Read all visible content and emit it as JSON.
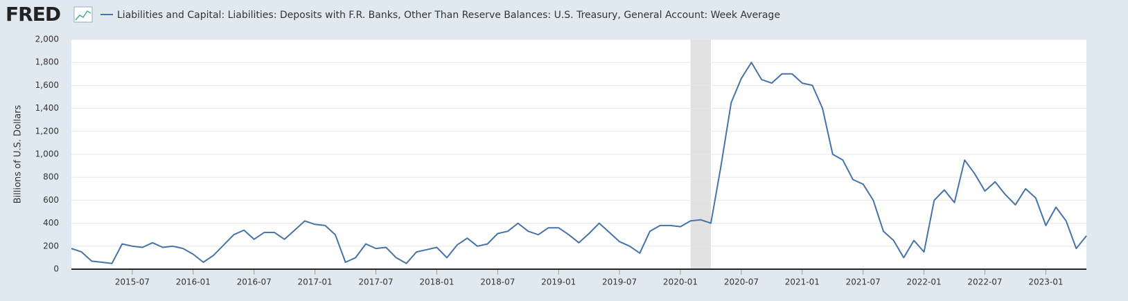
{
  "logo": "FRED",
  "chart_data": {
    "type": "line",
    "y_label": "Billions of U.S. Dollars",
    "x": [
      "2015-01",
      "2015-02",
      "2015-03",
      "2015-04",
      "2015-05",
      "2015-06",
      "2015-07",
      "2015-08",
      "2015-09",
      "2015-10",
      "2015-11",
      "2015-12",
      "2016-01",
      "2016-02",
      "2016-03",
      "2016-04",
      "2016-05",
      "2016-06",
      "2016-07",
      "2016-08",
      "2016-09",
      "2016-10",
      "2016-11",
      "2016-12",
      "2017-01",
      "2017-02",
      "2017-03",
      "2017-04",
      "2017-05",
      "2017-06",
      "2017-07",
      "2017-08",
      "2017-09",
      "2017-10",
      "2017-11",
      "2017-12",
      "2018-01",
      "2018-02",
      "2018-03",
      "2018-04",
      "2018-05",
      "2018-06",
      "2018-07",
      "2018-08",
      "2018-09",
      "2018-10",
      "2018-11",
      "2018-12",
      "2019-01",
      "2019-02",
      "2019-03",
      "2019-04",
      "2019-05",
      "2019-06",
      "2019-07",
      "2019-08",
      "2019-09",
      "2019-10",
      "2019-11",
      "2019-12",
      "2020-01",
      "2020-02",
      "2020-03",
      "2020-04",
      "2020-05",
      "2020-06",
      "2020-07",
      "2020-08",
      "2020-09",
      "2020-10",
      "2020-11",
      "2020-12",
      "2021-01",
      "2021-02",
      "2021-03",
      "2021-04",
      "2021-05",
      "2021-06",
      "2021-07",
      "2021-08",
      "2021-09",
      "2021-10",
      "2021-11",
      "2021-12",
      "2022-01",
      "2022-02",
      "2022-03",
      "2022-04",
      "2022-05",
      "2022-06",
      "2022-07",
      "2022-08",
      "2022-09",
      "2022-10",
      "2022-11",
      "2022-12",
      "2023-01",
      "2023-02",
      "2023-03",
      "2023-04",
      "2023-05"
    ],
    "series": [
      {
        "name": "Liabilities and Capital: Liabilities: Deposits with F.R. Banks, Other Than Reserve Balances: U.S. Treasury, General Account: Week Average",
        "color": "#4572a7",
        "values": [
          180,
          150,
          70,
          60,
          50,
          220,
          200,
          190,
          230,
          190,
          200,
          180,
          130,
          60,
          120,
          210,
          300,
          340,
          260,
          320,
          320,
          260,
          340,
          420,
          390,
          380,
          300,
          60,
          100,
          220,
          180,
          190,
          100,
          50,
          150,
          170,
          190,
          100,
          210,
          270,
          200,
          220,
          310,
          330,
          400,
          330,
          300,
          360,
          360,
          300,
          230,
          310,
          400,
          320,
          240,
          200,
          140,
          330,
          380,
          380,
          370,
          420,
          430,
          400,
          900,
          1450,
          1660,
          1800,
          1650,
          1620,
          1700,
          1700,
          1620,
          1600,
          1400,
          1000,
          950,
          780,
          740,
          600,
          330,
          250,
          100,
          250,
          150,
          600,
          690,
          580,
          950,
          830,
          680,
          760,
          650,
          560,
          700,
          620,
          380,
          540,
          420,
          180,
          290
        ]
      }
    ],
    "recession": [
      "2020-02",
      "2020-04"
    ],
    "xticks": [
      "2015-07",
      "2016-01",
      "2016-07",
      "2017-01",
      "2017-07",
      "2018-01",
      "2018-07",
      "2019-01",
      "2019-07",
      "2020-01",
      "2020-07",
      "2021-01",
      "2021-07",
      "2022-01",
      "2022-07",
      "2023-01"
    ],
    "ylim": [
      0,
      2000
    ],
    "yticks": [
      0,
      200,
      400,
      600,
      800,
      {
        "value": 1000,
        "label": "1,000"
      },
      {
        "value": 1200,
        "label": "1,200"
      },
      {
        "value": 1400,
        "label": "1,400"
      },
      {
        "value": 1600,
        "label": "1,600"
      },
      {
        "value": 1800,
        "label": "1,800"
      },
      {
        "value": 2000,
        "label": "2,000"
      }
    ],
    "grid": true
  }
}
